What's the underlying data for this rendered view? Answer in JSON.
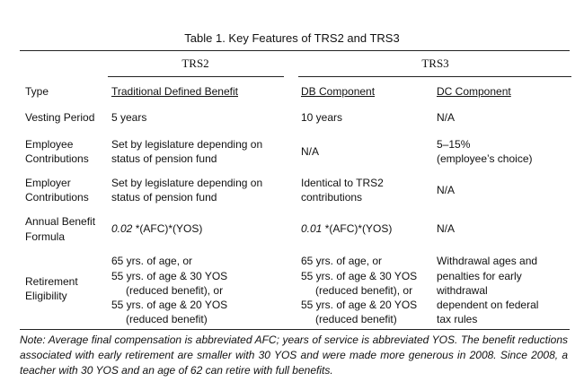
{
  "title": "Table 1. Key Features of TRS2 and TRS3",
  "columns": {
    "trs2": "TRS2",
    "trs3": "TRS3"
  },
  "rows": {
    "type": {
      "label": "Type",
      "trs2": "Traditional Defined Benefit",
      "db": "DB Component",
      "dc": "DC Component"
    },
    "vesting": {
      "label": "Vesting Period",
      "trs2": "5 years",
      "db": "10 years",
      "dc": "N/A"
    },
    "employee": {
      "label": [
        "Employee",
        "Contributions"
      ],
      "trs2": [
        "Set by legislature depending on",
        "status of pension fund"
      ],
      "db": "N/A",
      "dc": [
        "5–15%",
        "(employee’s choice)"
      ]
    },
    "employer": {
      "label": [
        "Employer",
        "Contributions"
      ],
      "trs2": [
        "Set by legislature depending on",
        "status of pension fund"
      ],
      "db": [
        "Identical to TRS2",
        "contributions"
      ],
      "dc": "N/A"
    },
    "formula": {
      "label": [
        "Annual Benefit",
        "Formula"
      ],
      "trs2_coef": "0.02",
      "trs2_rest": " *(AFC)*(YOS)",
      "db_coef": "0.01",
      "db_rest": " *(AFC)*(YOS)",
      "dc": "N/A"
    },
    "eligibility": {
      "label": [
        "Retirement",
        "Eligibility"
      ],
      "trs2": [
        "65 yrs. of age, or",
        "55 yrs. of age & 30 YOS",
        "(reduced benefit), or",
        "55 yrs. of age & 20 YOS",
        "(reduced benefit)"
      ],
      "db": [
        "65 yrs. of age, or",
        "55 yrs. of age & 30 YOS",
        "(reduced benefit), or",
        "55 yrs. of age & 20 YOS",
        "(reduced benefit)"
      ],
      "dc": [
        "Withdrawal ages and",
        "penalties for early",
        "withdrawal",
        "dependent on federal",
        "tax rules"
      ]
    }
  },
  "note": "Note: Average final compensation is abbreviated AFC; years of service is abbreviated YOS. The benefit reductions associated with early retirement are smaller with 30 YOS and were made more generous in 2008. Since 2008, a teacher with 30 YOS and an age of 62 can retire with full benefits."
}
